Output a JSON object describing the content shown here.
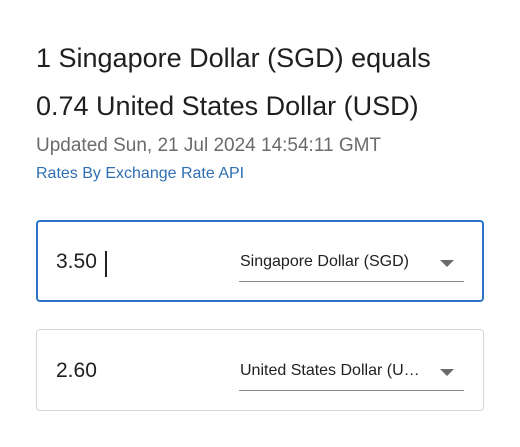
{
  "summary": {
    "line1": "1 Singapore Dollar (SGD) equals",
    "line2": "0.74 United States Dollar (USD)",
    "updated": "Updated Sun, 21 Jul 2024 14:54:11 GMT",
    "credit": "Rates By Exchange Rate API"
  },
  "from": {
    "amount": "3.50",
    "currency_label": "Singapore Dollar (SGD)"
  },
  "to": {
    "amount": "2.60",
    "currency_label": "United States Dollar (USD)"
  },
  "icons": {
    "dropdown": "chevron-down-icon"
  },
  "colors": {
    "focus_border": "#2a73c8",
    "link": "#2f6fb3",
    "muted_text": "#6b6b6b"
  }
}
